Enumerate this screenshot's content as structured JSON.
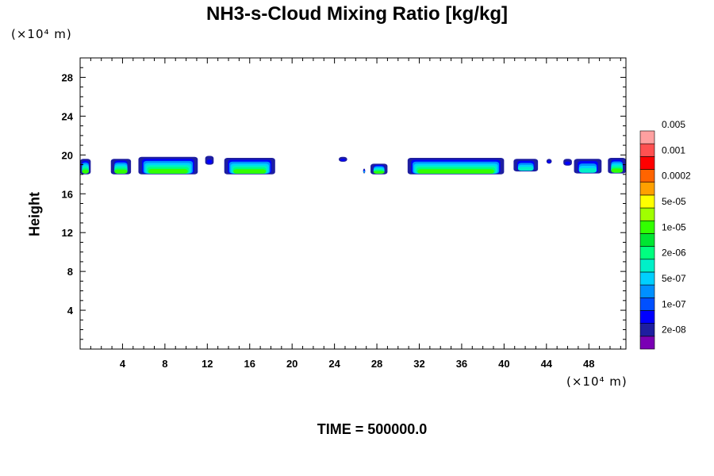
{
  "chart_data": {
    "type": "heatmap",
    "title": "NH3-s-Cloud Mixing Ratio [kg/kg]",
    "ylabel": "Height",
    "xlabel": "",
    "x_unit": "(×10⁴ m)",
    "y_unit": "(×10⁴ m)",
    "time_label": "TIME = 500000.0",
    "xlim": [
      0,
      51.5
    ],
    "ylim": [
      0,
      30
    ],
    "x_ticks": [
      4,
      8,
      12,
      16,
      20,
      24,
      28,
      32,
      36,
      40,
      44,
      48
    ],
    "y_ticks": [
      4,
      8,
      12,
      16,
      20,
      24,
      28
    ],
    "colorbar": {
      "levels": [
        "2e-08",
        "1e-07",
        "5e-07",
        "2e-06",
        "1e-05",
        "5e-05",
        "0.0002",
        "0.001",
        "0.005"
      ],
      "colors": [
        "#7a00b4",
        "#1e1ea0",
        "#0000ff",
        "#0050ff",
        "#0090ff",
        "#00d0ff",
        "#00f0c8",
        "#00ff80",
        "#00e632",
        "#32ff00",
        "#a0ff00",
        "#ffff00",
        "#ffa000",
        "#ff6400",
        "#ff0000",
        "#ff5050",
        "#ffa0a0"
      ]
    },
    "cloud_patches": [
      {
        "x0": 0.0,
        "x1": 1.0,
        "y_bottom": 18.0,
        "y_top": 19.6,
        "max_level": "1e-05"
      },
      {
        "x0": 2.9,
        "x1": 4.8,
        "y_bottom": 18.0,
        "y_top": 19.6,
        "max_level": "1e-05"
      },
      {
        "x0": 5.5,
        "x1": 11.1,
        "y_bottom": 18.0,
        "y_top": 19.8,
        "max_level": "1e-05"
      },
      {
        "x0": 11.8,
        "x1": 12.6,
        "y_bottom": 19.0,
        "y_top": 19.9,
        "max_level": "2e-08"
      },
      {
        "x0": 13.6,
        "x1": 18.4,
        "y_bottom": 18.0,
        "y_top": 19.7,
        "max_level": "1e-05"
      },
      {
        "x0": 24.4,
        "x1": 25.2,
        "y_bottom": 19.3,
        "y_top": 19.8,
        "max_level": "2e-08"
      },
      {
        "x0": 26.7,
        "x1": 26.9,
        "y_bottom": 18.1,
        "y_top": 18.6,
        "max_level": "5e-07"
      },
      {
        "x0": 27.4,
        "x1": 29.0,
        "y_bottom": 18.0,
        "y_top": 19.1,
        "max_level": "1e-05"
      },
      {
        "x0": 30.9,
        "x1": 40.0,
        "y_bottom": 18.0,
        "y_top": 19.7,
        "max_level": "1e-05"
      },
      {
        "x0": 40.9,
        "x1": 43.2,
        "y_bottom": 18.3,
        "y_top": 19.6,
        "max_level": "2e-06"
      },
      {
        "x0": 44.0,
        "x1": 44.5,
        "y_bottom": 19.1,
        "y_top": 19.6,
        "max_level": "2e-08"
      },
      {
        "x0": 45.6,
        "x1": 46.4,
        "y_bottom": 18.9,
        "y_top": 19.6,
        "max_level": "2e-08"
      },
      {
        "x0": 46.6,
        "x1": 49.2,
        "y_bottom": 18.1,
        "y_top": 19.6,
        "max_level": "2e-06"
      },
      {
        "x0": 49.8,
        "x1": 51.5,
        "y_bottom": 18.1,
        "y_top": 19.7,
        "max_level": "1e-05"
      }
    ]
  }
}
